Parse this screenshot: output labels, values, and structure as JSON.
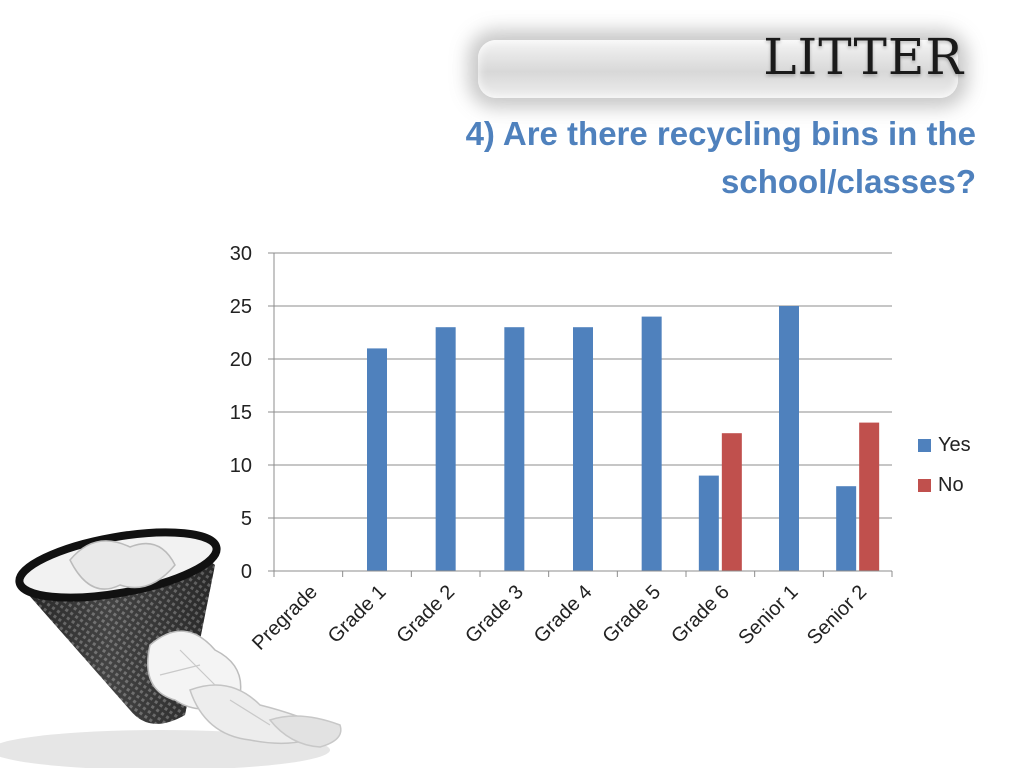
{
  "slide": {
    "title": "LITTER",
    "question": "4) Are there recycling bins in the school/classes?"
  },
  "chart_data": {
    "type": "bar",
    "categories": [
      "Pregrade",
      "Grade 1",
      "Grade 2",
      "Grade 3",
      "Grade 4",
      "Grade 5",
      "Grade 6",
      "Senior 1",
      "Senior 2"
    ],
    "series": [
      {
        "name": "Yes",
        "color": "#4f81bd",
        "values": [
          0,
          21,
          23,
          23,
          23,
          24,
          9,
          25,
          8
        ]
      },
      {
        "name": "No",
        "color": "#c0504d",
        "values": [
          0,
          0,
          0,
          0,
          0,
          0,
          13,
          0,
          14
        ]
      }
    ],
    "ylim": [
      0,
      30
    ],
    "yticks": [
      0,
      5,
      10,
      15,
      20,
      25,
      30
    ],
    "grid": true,
    "legend": "right"
  }
}
